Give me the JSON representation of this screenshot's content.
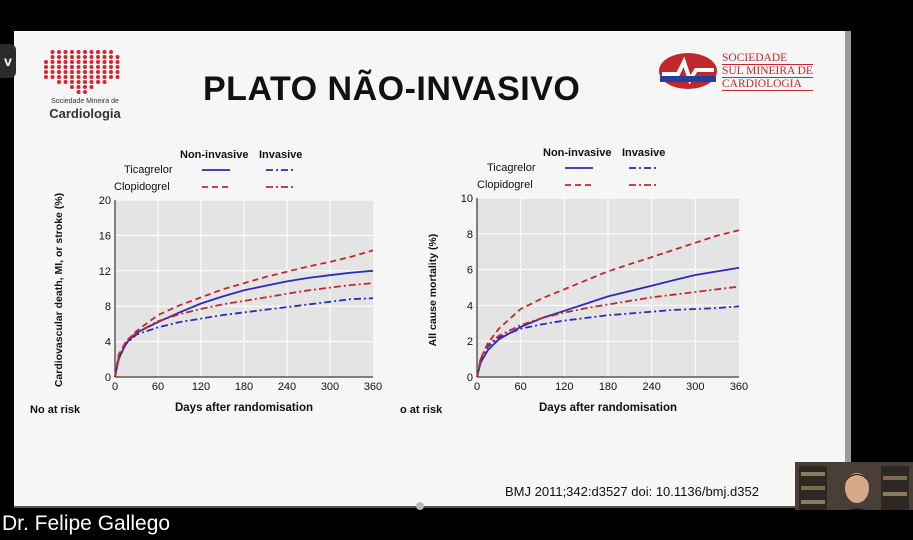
{
  "slide": {
    "title": "PLATO NÃO-INVASIVO",
    "logo_left_small": "Sociedade Mineira de",
    "logo_left_big": "Cardiologia",
    "logo_right_lines": [
      "SOCIEDADE",
      "SUL MINEIRA DE",
      "CARDIOLOGIA"
    ],
    "citation": "BMJ 2011;342:d3527 doi: 10.1136/bmj.d352"
  },
  "side_tab": {
    "label": "v"
  },
  "presenter": {
    "name": "Dr. Felipe Gallego"
  },
  "colors": {
    "non_invasive_ticagrelor": "#2b2bb8",
    "invasive_ticagrelor": "#2b2bb8",
    "clopidogrel": "#c0282d"
  },
  "chart_data": [
    {
      "type": "line",
      "ylabel": "Cardiovascular death, MI, or stroke (%)",
      "xlabel": "Days after randomisation",
      "footer_label": "No at risk",
      "legend": {
        "col_non_invasive": "Non-invasive",
        "col_invasive": "Invasive",
        "row_ticagrelor": "Ticagrelor",
        "row_clopidogrel": "Clopidogrel"
      },
      "x_ticks": [
        0,
        60,
        120,
        180,
        240,
        300,
        360
      ],
      "y_ticks": [
        0,
        4,
        8,
        12,
        16,
        20
      ],
      "xlim": [
        0,
        360
      ],
      "ylim": [
        0,
        20
      ],
      "series": [
        {
          "name": "Ticagrelor Non-invasive",
          "dash": "solid",
          "color": "#2b2bb8",
          "points": [
            [
              0,
              0
            ],
            [
              5,
              2
            ],
            [
              15,
              3.8
            ],
            [
              30,
              5
            ],
            [
              60,
              6.2
            ],
            [
              90,
              7.3
            ],
            [
              120,
              8.3
            ],
            [
              150,
              9.1
            ],
            [
              180,
              9.8
            ],
            [
              210,
              10.3
            ],
            [
              240,
              10.8
            ],
            [
              270,
              11.2
            ],
            [
              300,
              11.5
            ],
            [
              330,
              11.8
            ],
            [
              360,
              12
            ]
          ]
        },
        {
          "name": "Clopidogrel Non-invasive",
          "dash": "dash",
          "color": "#c0282d",
          "points": [
            [
              0,
              0
            ],
            [
              5,
              2.5
            ],
            [
              15,
              4
            ],
            [
              30,
              5.2
            ],
            [
              60,
              7
            ],
            [
              90,
              8.1
            ],
            [
              120,
              9
            ],
            [
              150,
              9.9
            ],
            [
              180,
              10.6
            ],
            [
              210,
              11.3
            ],
            [
              240,
              11.9
            ],
            [
              270,
              12.5
            ],
            [
              300,
              13
            ],
            [
              330,
              13.6
            ],
            [
              360,
              14.3
            ]
          ]
        },
        {
          "name": "Ticagrelor Invasive",
          "dash": "dashdot",
          "color": "#2b2bb8",
          "points": [
            [
              0,
              0
            ],
            [
              5,
              2
            ],
            [
              15,
              3.7
            ],
            [
              30,
              4.8
            ],
            [
              60,
              5.6
            ],
            [
              90,
              6.2
            ],
            [
              120,
              6.6
            ],
            [
              150,
              7
            ],
            [
              180,
              7.3
            ],
            [
              210,
              7.6
            ],
            [
              240,
              7.9
            ],
            [
              270,
              8.2
            ],
            [
              300,
              8.5
            ],
            [
              330,
              8.8
            ],
            [
              360,
              8.9
            ]
          ]
        },
        {
          "name": "Clopidogrel Invasive",
          "dash": "dashdot",
          "color": "#c0282d",
          "points": [
            [
              0,
              0
            ],
            [
              5,
              2.2
            ],
            [
              15,
              4
            ],
            [
              30,
              5
            ],
            [
              60,
              6.3
            ],
            [
              90,
              7.1
            ],
            [
              120,
              7.7
            ],
            [
              150,
              8.2
            ],
            [
              180,
              8.6
            ],
            [
              210,
              9
            ],
            [
              240,
              9.4
            ],
            [
              270,
              9.8
            ],
            [
              300,
              10.1
            ],
            [
              330,
              10.4
            ],
            [
              360,
              10.6
            ]
          ]
        }
      ]
    },
    {
      "type": "line",
      "ylabel": "All cause mortality (%)",
      "xlabel": "Days after randomisation",
      "footer_label": "o at risk",
      "legend": {
        "col_non_invasive": "Non-invasive",
        "col_invasive": "Invasive",
        "row_ticagrelor": "Ticagrelor",
        "row_clopidogrel": "Clopidogrel"
      },
      "x_ticks": [
        0,
        60,
        120,
        180,
        240,
        300,
        360
      ],
      "y_ticks": [
        0,
        2,
        4,
        6,
        8,
        10
      ],
      "xlim": [
        0,
        360
      ],
      "ylim": [
        0,
        10
      ],
      "series": [
        {
          "name": "Ticagrelor Non-invasive",
          "dash": "solid",
          "color": "#2b2bb8",
          "points": [
            [
              0,
              0
            ],
            [
              5,
              0.8
            ],
            [
              15,
              1.5
            ],
            [
              30,
              2.1
            ],
            [
              60,
              2.8
            ],
            [
              90,
              3.3
            ],
            [
              120,
              3.7
            ],
            [
              150,
              4.1
            ],
            [
              180,
              4.5
            ],
            [
              210,
              4.8
            ],
            [
              240,
              5.1
            ],
            [
              270,
              5.4
            ],
            [
              300,
              5.7
            ],
            [
              330,
              5.9
            ],
            [
              360,
              6.1
            ]
          ]
        },
        {
          "name": "Clopidogrel Non-invasive",
          "dash": "dash",
          "color": "#c0282d",
          "points": [
            [
              0,
              0
            ],
            [
              5,
              1
            ],
            [
              15,
              1.9
            ],
            [
              30,
              2.7
            ],
            [
              60,
              3.8
            ],
            [
              90,
              4.4
            ],
            [
              120,
              4.9
            ],
            [
              150,
              5.4
            ],
            [
              180,
              5.9
            ],
            [
              210,
              6.3
            ],
            [
              240,
              6.7
            ],
            [
              270,
              7.1
            ],
            [
              300,
              7.5
            ],
            [
              330,
              7.9
            ],
            [
              360,
              8.2
            ]
          ]
        },
        {
          "name": "Ticagrelor Invasive",
          "dash": "dashdot",
          "color": "#2b2bb8",
          "points": [
            [
              0,
              0
            ],
            [
              5,
              0.9
            ],
            [
              15,
              1.7
            ],
            [
              30,
              2.2
            ],
            [
              60,
              2.7
            ],
            [
              90,
              2.95
            ],
            [
              120,
              3.15
            ],
            [
              150,
              3.3
            ],
            [
              180,
              3.45
            ],
            [
              210,
              3.55
            ],
            [
              240,
              3.65
            ],
            [
              270,
              3.75
            ],
            [
              300,
              3.8
            ],
            [
              330,
              3.85
            ],
            [
              360,
              3.95
            ]
          ]
        },
        {
          "name": "Clopidogrel Invasive",
          "dash": "dashdot",
          "color": "#c0282d",
          "points": [
            [
              0,
              0
            ],
            [
              5,
              1
            ],
            [
              15,
              1.8
            ],
            [
              30,
              2.3
            ],
            [
              60,
              2.9
            ],
            [
              90,
              3.3
            ],
            [
              120,
              3.6
            ],
            [
              150,
              3.85
            ],
            [
              180,
              4.05
            ],
            [
              210,
              4.25
            ],
            [
              240,
              4.45
            ],
            [
              270,
              4.6
            ],
            [
              300,
              4.75
            ],
            [
              330,
              4.9
            ],
            [
              360,
              5.05
            ]
          ]
        }
      ]
    }
  ]
}
